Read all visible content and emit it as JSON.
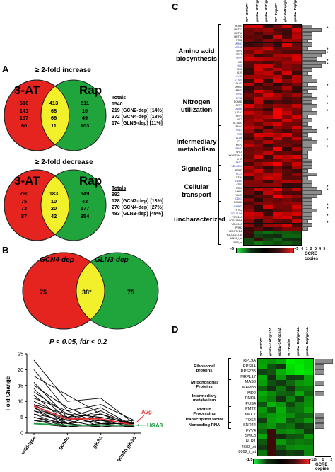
{
  "panelA": {
    "label": "A",
    "increase": {
      "title": "≥ 2-fold increase",
      "left_set": "3-AT",
      "right_set": "Rap",
      "left_values": [
        "616",
        "141",
        "157",
        "60"
      ],
      "mid_values": [
        "413",
        "68",
        "66",
        "11"
      ],
      "right_values": [
        "511",
        "10",
        "49",
        "103"
      ],
      "totals_header": "Totals",
      "totals": [
        "1540",
        "219 (GCN2-dep) [14%]",
        "272 (GCN4-dep) [18%]",
        "174 (GLN3-dep) [11%]"
      ]
    },
    "decrease": {
      "title": "≥ 2-fold decrease",
      "left_set": "3-AT",
      "right_set": "Rap",
      "left_values": [
        "260",
        "75",
        "73",
        "87"
      ],
      "mid_values": [
        "183",
        "10",
        "20",
        "42"
      ],
      "right_values": [
        "549",
        "43",
        "177",
        "354"
      ],
      "totals_header": "Totals",
      "totals": [
        "992",
        "128 (GCN2-dep) [13%]",
        "270 (GCN4-dep) [27%]",
        "483 (GLN3-dep) [49%]"
      ]
    }
  },
  "panelB": {
    "label": "B",
    "left_set": "GCN4-dep",
    "right_set": "GLN3-dep",
    "left_value": "75",
    "mid_value": "38*",
    "right_value": "75",
    "criteria": "P < 0.05, fdr < 0.2",
    "chart_data": {
      "type": "line",
      "ylabel": "Fold Change",
      "categories": [
        "wild-type",
        "gcn4Δ",
        "gln3Δ",
        "gcn4Δ gln3Δ"
      ],
      "ylim": [
        0,
        25
      ],
      "yticks": [
        0,
        5,
        10,
        15,
        20,
        25
      ],
      "series": [
        {
          "values": [
            23,
            10,
            11,
            3
          ]
        },
        {
          "values": [
            20,
            7,
            9,
            4
          ]
        },
        {
          "values": [
            18,
            12,
            6,
            3
          ]
        },
        {
          "values": [
            16,
            5,
            8,
            2
          ]
        },
        {
          "values": [
            15,
            8,
            4,
            3
          ]
        },
        {
          "values": [
            14,
            4,
            7,
            2
          ]
        },
        {
          "values": [
            13,
            6,
            5,
            3
          ]
        },
        {
          "values": [
            12,
            3,
            6,
            2
          ]
        },
        {
          "values": [
            11,
            7,
            3,
            4
          ]
        },
        {
          "values": [
            10,
            5,
            6,
            2
          ]
        },
        {
          "values": [
            9,
            3,
            4,
            3
          ]
        },
        {
          "values": [
            9,
            6,
            2,
            2
          ]
        },
        {
          "values": [
            8,
            4,
            5,
            3
          ]
        },
        {
          "values": [
            8,
            2,
            3,
            2
          ]
        },
        {
          "values": [
            7,
            5,
            3,
            3
          ]
        },
        {
          "values": [
            7,
            3,
            4,
            2
          ]
        },
        {
          "values": [
            6,
            4,
            2,
            2
          ]
        },
        {
          "values": [
            6,
            2,
            3,
            3
          ]
        },
        {
          "values": [
            5,
            3,
            2,
            2
          ]
        },
        {
          "values": [
            5,
            2,
            3,
            2
          ]
        },
        {
          "values": [
            4,
            3,
            2,
            3
          ]
        },
        {
          "values": [
            4,
            2,
            2,
            2
          ]
        },
        {
          "values": [
            3,
            2,
            3,
            2
          ]
        },
        {
          "name": "Avg",
          "values": [
            8.5,
            4.5,
            4.5,
            2.5
          ]
        },
        {
          "name": "UGA3",
          "values": [
            3,
            2.5,
            2.5,
            2.5
          ]
        }
      ],
      "avg_label": "Avg",
      "uga3_label": "UGA3",
      "colors": {
        "lines": "#000000",
        "avg": "#e03030",
        "uga3": "#20a040"
      }
    }
  },
  "panelC": {
    "label": "C",
    "columns": [
      "WT+3AT/WT",
      "gcn2Δ+3AT/gcn2Δ",
      "gcn4Δ+3AT/gcn4Δ",
      "WT+Rap/WT",
      "gln3Δ+Rap/gln3Δ",
      "gcn4Δ+Rap/gcn4Δ"
    ],
    "genes": [
      {
        "name": "HOM3",
        "blue": false,
        "gcre": 2,
        "star": false
      },
      {
        "name": "MET13",
        "blue": false,
        "gcre": 4,
        "star": true
      },
      {
        "name": "MET16",
        "blue": false,
        "gcre": 2,
        "star": false
      },
      {
        "name": "MET22",
        "blue": false,
        "gcre": 2,
        "star": false
      },
      {
        "name": "STR2",
        "blue": false,
        "gcre": 1,
        "star": false
      },
      {
        "name": "ARO3",
        "blue": true,
        "gcre": 2,
        "star": false
      },
      {
        "name": "ARO8",
        "blue": true,
        "gcre": 1,
        "star": false
      },
      {
        "name": "TRP2",
        "blue": false,
        "gcre": 5,
        "star": true
      },
      {
        "name": "TRP3",
        "blue": false,
        "gcre": 4,
        "star": true
      },
      {
        "name": "TRP4",
        "blue": true,
        "gcre": 3,
        "star": false
      },
      {
        "name": "HIS3",
        "blue": false,
        "gcre": 5,
        "star": true
      },
      {
        "name": "HIS5",
        "blue": true,
        "gcre": 4,
        "star": true
      },
      {
        "name": "ILV2",
        "blue": false,
        "gcre": 2,
        "star": false
      },
      {
        "name": "ILV5",
        "blue": false,
        "gcre": 1,
        "star": false
      },
      {
        "name": "LYS1",
        "blue": true,
        "gcre": 2,
        "star": false
      },
      {
        "name": "LYS20",
        "blue": true,
        "gcre": 3,
        "star": false
      },
      {
        "name": "GLN3",
        "blue": false,
        "gcre": 1,
        "star": false
      },
      {
        "name": "ARG1",
        "blue": false,
        "gcre": 3,
        "star": true
      },
      {
        "name": "ARG2",
        "blue": false,
        "gcre": 1,
        "star": false
      },
      {
        "name": "CPA1",
        "blue": true,
        "gcre": 2,
        "star": false
      },
      {
        "name": "CPA2",
        "blue": true,
        "gcre": 3,
        "star": true
      },
      {
        "name": "ECM40",
        "blue": false,
        "gcre": 2,
        "star": false
      },
      {
        "name": "ORT1",
        "blue": false,
        "gcre": 3,
        "star": true
      },
      {
        "name": "ADH5",
        "blue": true,
        "gcre": 2,
        "star": false
      },
      {
        "name": "UGA3",
        "blue": false,
        "gcre": 3,
        "star": true
      },
      {
        "name": "SRY1",
        "blue": false,
        "gcre": 1,
        "star": false
      },
      {
        "name": "NIT1",
        "blue": false,
        "gcre": 2,
        "star": false
      },
      {
        "name": "YIL165C",
        "blue": false,
        "gcre": 1,
        "star": false
      },
      {
        "name": "BNA1",
        "blue": false,
        "gcre": 2,
        "star": false
      },
      {
        "name": "SNZ1",
        "blue": true,
        "gcre": 3,
        "star": true
      },
      {
        "name": "RIB5",
        "blue": true,
        "gcre": 1,
        "star": false
      },
      {
        "name": "ALD6",
        "blue": true,
        "gcre": 2,
        "star": false
      },
      {
        "name": "ICL1",
        "blue": false,
        "gcre": 3,
        "star": true
      },
      {
        "name": "PKP2",
        "blue": false,
        "gcre": 2,
        "star": false
      },
      {
        "name": "SNO1",
        "blue": true,
        "gcre": 2,
        "star": true
      },
      {
        "name": "SRL4",
        "blue": false,
        "gcre": 1,
        "star": false
      },
      {
        "name": "YKL033W-A",
        "blue": false,
        "gcre": 1,
        "star": false
      },
      {
        "name": "YHI9",
        "blue": false,
        "gcre": 2,
        "star": false
      },
      {
        "name": "TMT1",
        "blue": true,
        "gcre": 2,
        "star": false
      },
      {
        "name": "YDL025C",
        "blue": true,
        "gcre": 2,
        "star": false
      },
      {
        "name": "PRM2",
        "blue": false,
        "gcre": 1,
        "star": false
      },
      {
        "name": "PCL5",
        "blue": true,
        "gcre": 3,
        "star": false
      },
      {
        "name": "STB4",
        "blue": false,
        "gcre": 1,
        "star": false
      },
      {
        "name": "GDH3",
        "blue": true,
        "gcre": 2,
        "star": false
      },
      {
        "name": "ATR1",
        "blue": false,
        "gcre": 2,
        "star": false
      },
      {
        "name": "SSU1",
        "blue": false,
        "gcre": 3,
        "star": true
      },
      {
        "name": "VHR1",
        "blue": false,
        "gcre": 4,
        "star": true
      },
      {
        "name": "YMC1",
        "blue": false,
        "gcre": 3,
        "star": false
      },
      {
        "name": "QDC1",
        "blue": true,
        "gcre": 2,
        "star": false
      },
      {
        "name": "ECM13",
        "blue": false,
        "gcre": 2,
        "star": false
      },
      {
        "name": "FMP23",
        "blue": true,
        "gcre": 2,
        "star": true
      },
      {
        "name": "RTC2",
        "blue": false,
        "gcre": 3,
        "star": true
      },
      {
        "name": "YGL117W",
        "blue": true,
        "gcre": 2,
        "star": false
      },
      {
        "name": "YJR111C",
        "blue": false,
        "gcre": 2,
        "star": true
      },
      {
        "name": "YOR1985W",
        "blue": false,
        "gcre": 1,
        "star": false
      },
      {
        "name": "YRL294C",
        "blue": false,
        "gcre": 2,
        "star": true
      },
      {
        "name": "PRM2",
        "blue": false,
        "gcre": 1,
        "star": false
      },
      {
        "name": "YERCTY1-2",
        "blue": false,
        "gcre": 0,
        "star": false
      },
      {
        "name": "YGLCDELTA5",
        "blue": false,
        "gcre": 0,
        "star": false
      },
      {
        "name": "10610_i_at",
        "blue": false,
        "gcre": 0,
        "star": false
      },
      {
        "name": "3885_at",
        "blue": false,
        "gcre": 0,
        "star": false
      }
    ],
    "categories": [
      {
        "label": "Amino acid\nbiosynthesis",
        "from": 0,
        "to": 16
      },
      {
        "label": "Nitrogen\nutilization",
        "from": 17,
        "to": 27
      },
      {
        "label": "Intermediary\nmetabolism",
        "from": 28,
        "to": 38
      },
      {
        "label": "Signaling",
        "from": 39,
        "to": 42
      },
      {
        "label": "Cellular\ntransport",
        "from": 43,
        "to": 48
      },
      {
        "label": "uncharacterized",
        "from": 49,
        "to": 60
      }
    ],
    "gcre_axis_ticks": [
      "0",
      "1",
      "2",
      "3",
      "4",
      "5"
    ],
    "gcre_axis_label": "GCRE\ncopies",
    "scale_min": "-5",
    "scale_max": "+5",
    "star": "*"
  },
  "panelD": {
    "label": "D",
    "columns": [
      "WT+3AT/WT",
      "gcn2Δ+3AT/gcn2Δ",
      "gcn4Δ+3AT/gcn4Δ",
      "WT+Rap/WT",
      "gcn2Δ+Rap/gcn2Δ",
      "gcn4Δ+Rap/gcn4Δ"
    ],
    "genes": [
      {
        "name": "RPL9A",
        "gcre": 2
      },
      {
        "name": "RPS8A",
        "gcre": 1
      },
      {
        "name": "RPS22B",
        "gcre": 1
      },
      {
        "name": "MRPL17",
        "gcre": 0
      },
      {
        "name": "MAS6",
        "gcre": 1
      },
      {
        "name": "MAM33",
        "gcre": 0
      },
      {
        "name": "IMD2",
        "gcre": 1
      },
      {
        "name": "RNR1",
        "gcre": 0
      },
      {
        "name": "PUS4",
        "gcre": 0
      },
      {
        "name": "PMT2",
        "gcre": 0
      },
      {
        "name": "MKC7",
        "gcre": 1
      },
      {
        "name": "TOS4",
        "gcre": 1
      },
      {
        "name": "SNR44",
        "gcre": 1
      },
      {
        "name": "FYV4",
        "gcre": 0
      },
      {
        "name": "SMC3",
        "gcre": 0
      },
      {
        "name": "HLR1",
        "gcre": 0
      },
      {
        "name": "4682_at",
        "gcre": 0
      },
      {
        "name": "8092_i_at",
        "gcre": 0
      }
    ],
    "categories": [
      {
        "label": "Ribosomal\nproteins",
        "from": 0,
        "to": 3
      },
      {
        "label": "Mitochondrial\nProteins",
        "from": 4,
        "to": 5
      },
      {
        "label": "Intermediary\nmetabolism",
        "from": 6,
        "to": 8
      },
      {
        "label": "Protein\nProcessing",
        "from": 9,
        "to": 10
      },
      {
        "label": "Transcription factor",
        "from": 11,
        "to": 11
      },
      {
        "label": "Noncoding RNA",
        "from": 12,
        "to": 12
      }
    ],
    "gcre_axis_ticks": [
      "0",
      "1",
      "2"
    ],
    "gcre_axis_label": "GCRE\ncopies",
    "scale_min": "-1.5",
    "scale_max": "+1.5"
  }
}
